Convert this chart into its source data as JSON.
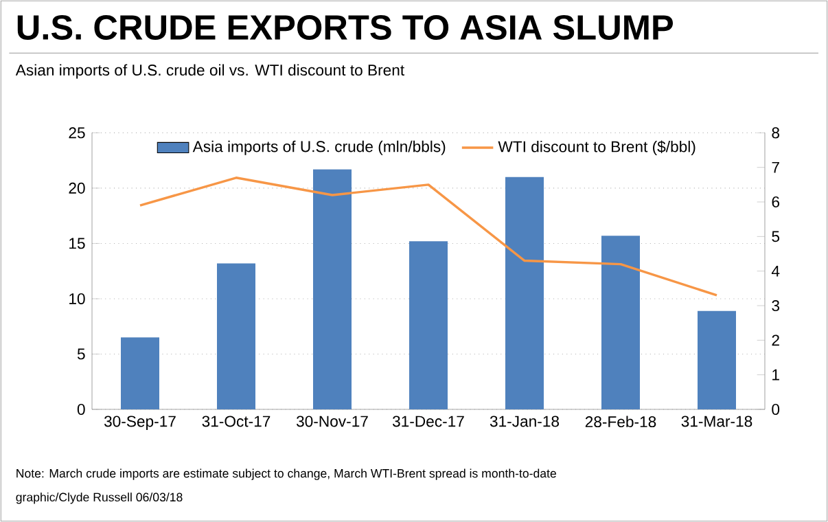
{
  "chart_data": {
    "type": "bar",
    "title": "U.S. CRUDE EXPORTS TO ASIA SLUMP",
    "subtitle": "Asian imports of U.S. crude oil vs. WTI discount to Brent",
    "categories": [
      "30-Sep-17",
      "31-Oct-17",
      "30-Nov-17",
      "31-Dec-17",
      "31-Jan-18",
      "28-Feb-18",
      "31-Mar-18"
    ],
    "series": [
      {
        "name": "Asia imports of U.S. crude (mln/bbls)",
        "color": "#4f81bd",
        "values": [
          6.5,
          13.2,
          21.7,
          15.2,
          21.0,
          15.7,
          8.9
        ]
      },
      {
        "name": "WTI discount to Brent ($/bbl)",
        "type": "line",
        "axis": "y2",
        "color": "#f79646",
        "values": [
          5.9,
          6.7,
          6.2,
          6.5,
          4.3,
          4.2,
          3.3
        ]
      }
    ],
    "ylim": [
      0,
      25
    ],
    "yticks": [
      0,
      5,
      10,
      15,
      20,
      25
    ],
    "y2lim": [
      0,
      8
    ],
    "y2ticks": [
      0,
      1,
      2,
      3,
      4,
      5,
      6,
      7,
      8
    ],
    "grid": "y",
    "legend": "top",
    "annotations": [
      "Note: March crude imports are estimate subject to change, March WTI-Brent spread is month-to-date",
      "graphic/Clyde Russell 06/03/18"
    ]
  }
}
